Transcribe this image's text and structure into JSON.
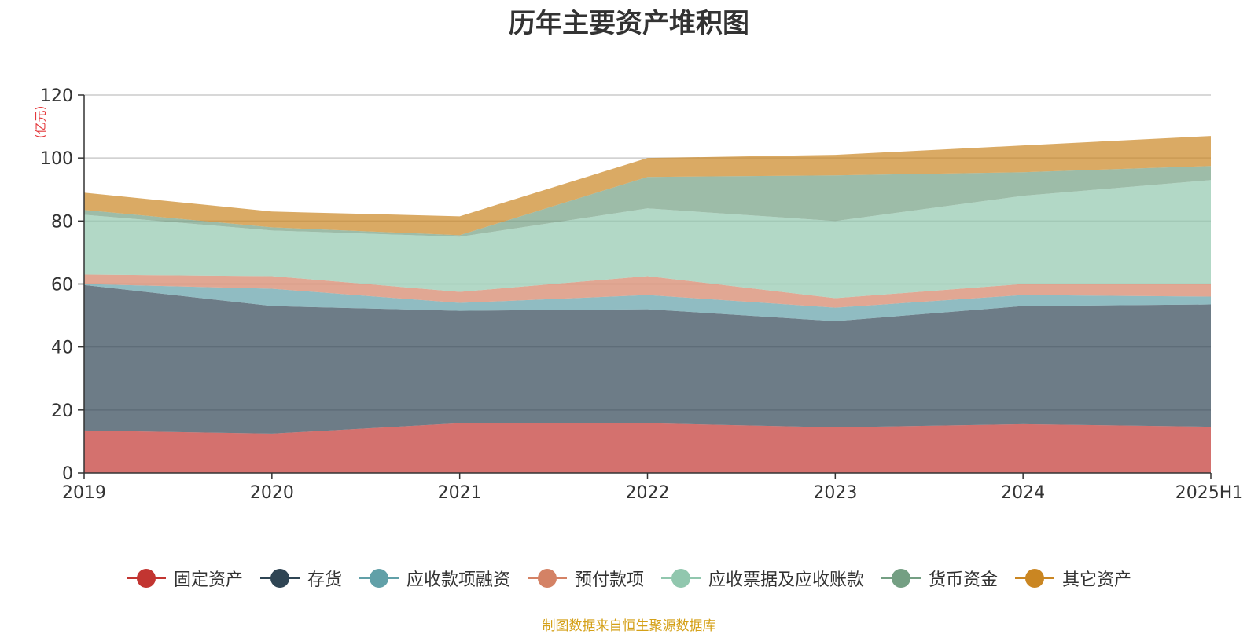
{
  "chart_data": {
    "type": "area",
    "stacked": true,
    "title": "历年主要资产堆积图",
    "unit": "(亿元)",
    "categories": [
      "2019",
      "2020",
      "2021",
      "2022",
      "2023",
      "2024",
      "2025H1"
    ],
    "ylim": [
      0,
      120
    ],
    "yticks": [
      0,
      20,
      40,
      60,
      80,
      100,
      120
    ],
    "grid": true,
    "legend_position": "bottom",
    "series": [
      {
        "name": "固定资产",
        "color": "#c23531",
        "values": [
          13.5,
          12.5,
          15.8,
          15.8,
          14.5,
          15.5,
          14.7
        ]
      },
      {
        "name": "存货",
        "color": "#2f4554",
        "values": [
          46.2,
          40.5,
          35.7,
          36.2,
          33.7,
          37.5,
          38.8
        ]
      },
      {
        "name": "应收款项融资",
        "color": "#61a0a8",
        "values": [
          0.3,
          5.5,
          2.5,
          4.5,
          4.3,
          3.5,
          2.5
        ]
      },
      {
        "name": "预付款项",
        "color": "#d48265",
        "values": [
          3.0,
          4.0,
          3.5,
          6.0,
          3.0,
          3.5,
          4.0
        ]
      },
      {
        "name": "应收票据及应收账款",
        "color": "#91c7ae",
        "values": [
          19.0,
          14.5,
          17.5,
          21.5,
          24.5,
          28.0,
          33.0
        ]
      },
      {
        "name": "货币资金",
        "color": "#749f83",
        "values": [
          1.5,
          1.0,
          0.5,
          10.0,
          14.5,
          7.5,
          4.5
        ]
      },
      {
        "name": "其它资产",
        "color": "#ca8622",
        "values": [
          5.5,
          5.0,
          6.0,
          6.0,
          6.5,
          8.5,
          9.5
        ]
      }
    ]
  },
  "source_note": "制图数据来自恒生聚源数据库"
}
